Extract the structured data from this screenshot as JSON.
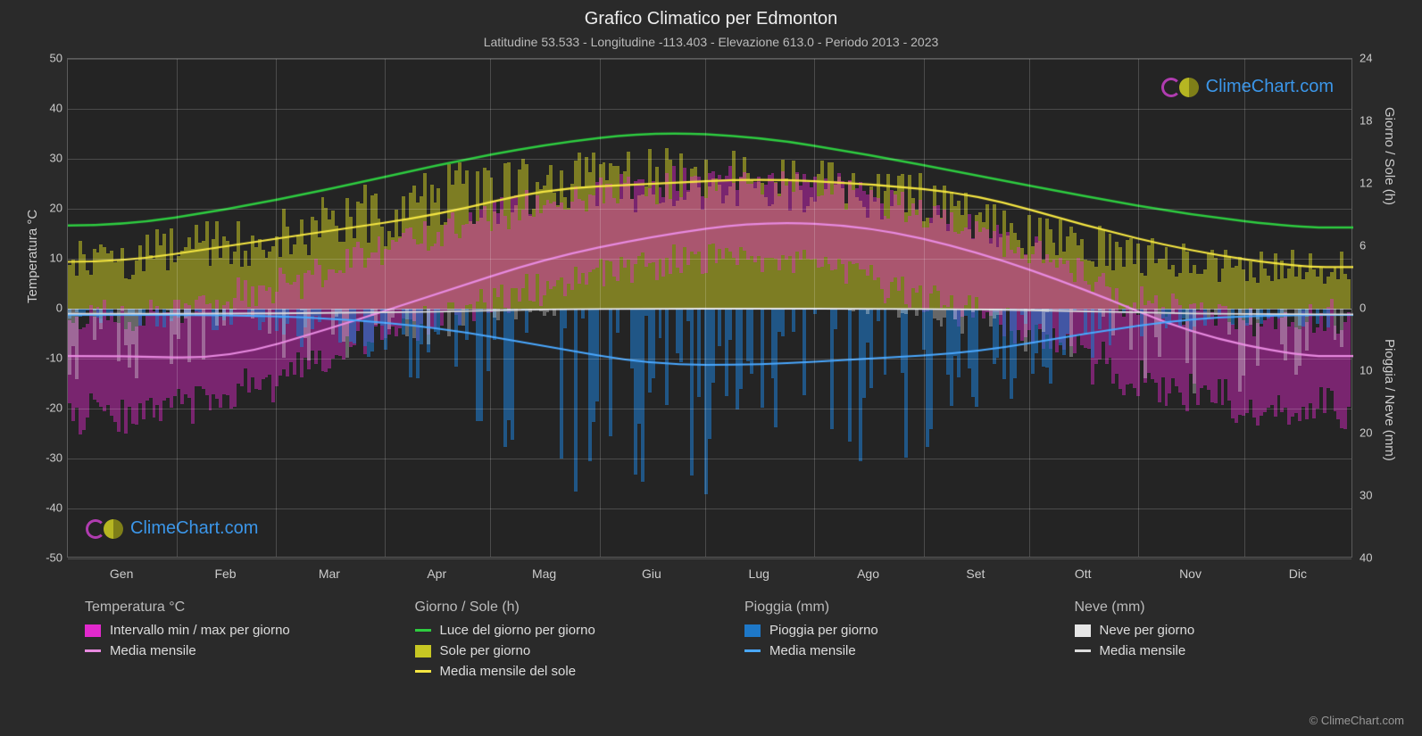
{
  "title": "Grafico Climatico per Edmonton",
  "subtitle": "Latitudine 53.533 - Longitudine -113.403 - Elevazione 613.0 - Periodo 2013 - 2023",
  "watermark_text": "ClimeChart.com",
  "copyright": "© ClimeChart.com",
  "colors": {
    "bg": "#2a2a2a",
    "plot_bg": "#242424",
    "grid": "rgba(255,255,255,0.18)",
    "daylight": "#2ecc40",
    "sun_mean": "#f5e642",
    "sun_bar": "#c7c723",
    "temp_range": "#e229cd",
    "temp_mean": "#e88ae0",
    "rain_bar": "#1e78c8",
    "rain_mean": "#4aa8ff",
    "snow_bar": "#e6e6e6",
    "snow_mean": "#dddddd",
    "watermark": "#3fa4ff"
  },
  "axes": {
    "y_left_label": "Temperatura °C",
    "y_right_label_top": "Giorno / Sole (h)",
    "y_right_label_bot": "Pioggia / Neve (mm)",
    "y_left_min": -50,
    "y_left_max": 50,
    "y_left_step": 10,
    "y_right_top_ticks": [
      0,
      6,
      12,
      18,
      24
    ],
    "y_right_bot_ticks": [
      0,
      10,
      20,
      30,
      40
    ],
    "months": [
      "Gen",
      "Feb",
      "Mar",
      "Apr",
      "Mag",
      "Giu",
      "Lug",
      "Ago",
      "Set",
      "Ott",
      "Nov",
      "Dic"
    ]
  },
  "monthly": {
    "daylight_h": [
      8.0,
      9.5,
      11.5,
      13.8,
      15.8,
      17.0,
      16.5,
      14.8,
      12.8,
      10.8,
      9.0,
      7.8
    ],
    "sun_mean_h": [
      4.5,
      6.0,
      7.5,
      9.0,
      11.5,
      12.0,
      12.5,
      12.0,
      11.0,
      8.0,
      5.5,
      4.0
    ],
    "sun_hi_h": [
      6.5,
      8.0,
      10.0,
      12.5,
      15.0,
      15.5,
      15.5,
      14.5,
      13.0,
      10.0,
      7.0,
      5.5
    ],
    "sun_lo_h": [
      2.0,
      3.0,
      4.5,
      6.0,
      8.0,
      8.5,
      9.5,
      9.0,
      8.0,
      5.0,
      3.0,
      2.0
    ],
    "tmean_c": [
      -9.5,
      -10.0,
      -4.0,
      3.0,
      10.0,
      14.5,
      17.5,
      16.5,
      11.5,
      4.0,
      -5.0,
      -9.5
    ],
    "tmax_c": [
      -3.0,
      -2.0,
      3.0,
      11.0,
      18.0,
      22.0,
      24.5,
      24.0,
      18.5,
      10.0,
      0.0,
      -3.0
    ],
    "tmin_c": [
      -18.0,
      -18.0,
      -12.0,
      -3.0,
      3.0,
      8.0,
      11.0,
      10.0,
      4.0,
      -3.0,
      -12.0,
      -17.0
    ],
    "textreme_hi": [
      5.0,
      6.0,
      12.0,
      20.0,
      27.0,
      30.0,
      32.0,
      31.0,
      27.0,
      20.0,
      8.0,
      4.0
    ],
    "textreme_lo": [
      -35.0,
      -34.0,
      -28.0,
      -15.0,
      -4.0,
      2.0,
      6.0,
      4.0,
      -4.0,
      -15.0,
      -28.0,
      -33.0
    ],
    "rain_mean_mm": [
      1.0,
      1.0,
      1.5,
      3.0,
      6.0,
      9.0,
      9.0,
      8.0,
      7.0,
      4.0,
      1.5,
      1.0
    ],
    "rain_hi_mm": [
      3.0,
      3.0,
      5.0,
      10.0,
      22.0,
      32.0,
      32.0,
      28.0,
      25.0,
      14.0,
      5.0,
      3.0
    ],
    "snow_mean_mm": [
      0.8,
      0.8,
      0.7,
      0.5,
      0.1,
      0.0,
      0.0,
      0.0,
      0.1,
      0.4,
      0.8,
      0.9
    ],
    "snow_hi_mm": [
      12.0,
      12.0,
      10.0,
      8.0,
      3.0,
      0.0,
      0.0,
      0.0,
      2.0,
      8.0,
      14.0,
      14.0
    ]
  },
  "legend": {
    "temp_hdr": "Temperatura °C",
    "temp_range": "Intervallo min / max per giorno",
    "temp_mean": "Media mensile",
    "sun_hdr": "Giorno / Sole (h)",
    "daylight": "Luce del giorno per giorno",
    "sun_bar": "Sole per giorno",
    "sun_mean": "Media mensile del sole",
    "rain_hdr": "Pioggia (mm)",
    "rain_bar": "Pioggia per giorno",
    "rain_mean": "Media mensile",
    "snow_hdr": "Neve (mm)",
    "snow_bar": "Neve per giorno",
    "snow_mean": "Media mensile"
  }
}
